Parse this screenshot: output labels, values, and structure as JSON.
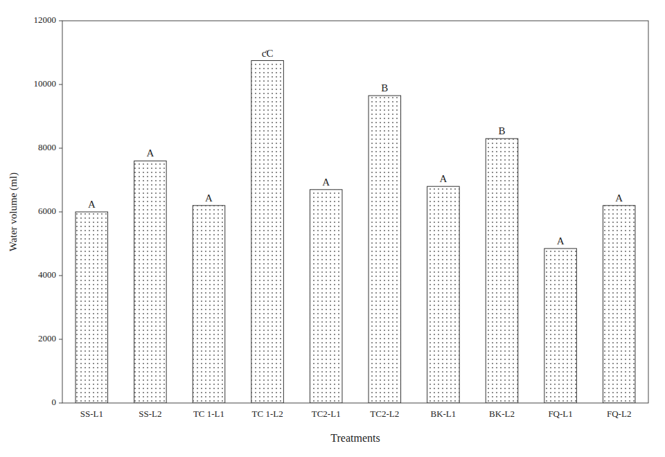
{
  "chart_data": {
    "type": "bar",
    "categories": [
      "SS-L1",
      "SS-L2",
      "TC 1-L1",
      "TC 1-L2",
      "TC2-L1",
      "TC2-L2",
      "BK-L1",
      "BK-L2",
      "FQ-L1",
      "FQ-L2"
    ],
    "values": [
      6000,
      7600,
      6200,
      10750,
      6700,
      9650,
      6800,
      8300,
      4850,
      6200
    ],
    "annotations": [
      "A",
      "A",
      "A",
      "ƈC",
      "A",
      "B",
      "A",
      "B",
      "A",
      "A"
    ],
    "xlabel": "Treatments",
    "ylabel": "Water volume (ml)",
    "ylim": [
      0,
      12000
    ],
    "yticks": [
      0,
      2000,
      4000,
      6000,
      8000,
      10000,
      12000
    ],
    "color": "#ffffff",
    "grid": false
  }
}
